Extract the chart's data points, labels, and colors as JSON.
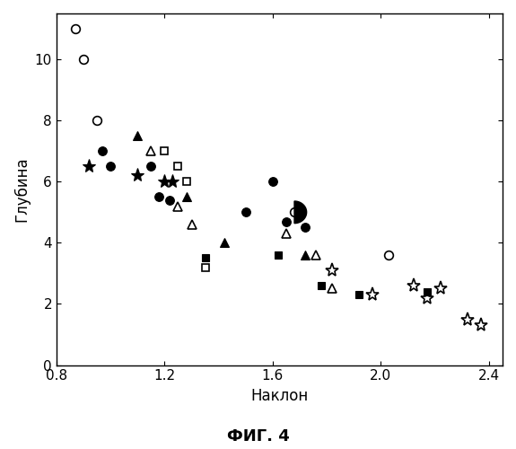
{
  "xlabel": "Наклон",
  "ylabel": "Глубина",
  "caption": "ФИГ. 4",
  "xlim": [
    0.8,
    2.45
  ],
  "ylim": [
    0,
    11.5
  ],
  "xticks": [
    0.8,
    1.2,
    1.6,
    2.0,
    2.4
  ],
  "yticks": [
    0,
    2,
    4,
    6,
    8,
    10
  ],
  "open_circle": [
    [
      0.87,
      11.0
    ],
    [
      0.9,
      10.0
    ],
    [
      0.95,
      8.0
    ],
    [
      2.03,
      3.6
    ]
  ],
  "filled_circle": [
    [
      0.97,
      7.0
    ],
    [
      1.0,
      6.5
    ],
    [
      1.15,
      6.5
    ],
    [
      1.18,
      5.5
    ],
    [
      1.22,
      5.4
    ],
    [
      1.5,
      5.0
    ],
    [
      1.6,
      6.0
    ],
    [
      1.65,
      4.7
    ],
    [
      1.72,
      4.5
    ]
  ],
  "open_triangle": [
    [
      1.15,
      7.0
    ],
    [
      1.25,
      5.2
    ],
    [
      1.3,
      4.6
    ],
    [
      1.65,
      4.3
    ],
    [
      1.76,
      3.6
    ],
    [
      1.82,
      2.5
    ]
  ],
  "filled_triangle": [
    [
      1.1,
      7.5
    ],
    [
      1.28,
      5.5
    ],
    [
      1.42,
      4.0
    ],
    [
      1.72,
      3.6
    ]
  ],
  "open_square": [
    [
      1.2,
      7.0
    ],
    [
      1.25,
      6.5
    ],
    [
      1.28,
      6.0
    ],
    [
      1.35,
      3.2
    ]
  ],
  "filled_square": [
    [
      1.35,
      3.5
    ],
    [
      1.62,
      3.6
    ],
    [
      1.78,
      2.6
    ],
    [
      1.92,
      2.3
    ],
    [
      2.17,
      2.4
    ]
  ],
  "filled_star": [
    [
      0.92,
      6.5
    ],
    [
      1.1,
      6.2
    ],
    [
      1.2,
      6.0
    ],
    [
      1.23,
      6.0
    ]
  ],
  "open_star": [
    [
      1.82,
      3.1
    ],
    [
      1.97,
      2.3
    ],
    [
      2.12,
      2.6
    ],
    [
      2.17,
      2.2
    ],
    [
      2.22,
      2.5
    ],
    [
      2.32,
      1.5
    ],
    [
      2.37,
      1.3
    ]
  ],
  "half_circle": [
    [
      1.68,
      5.0
    ]
  ],
  "ms_circle": 7,
  "ms_square": 6,
  "ms_triangle": 7,
  "ms_star": 11,
  "ew_open": 1.2,
  "ew_filled": 0.8
}
